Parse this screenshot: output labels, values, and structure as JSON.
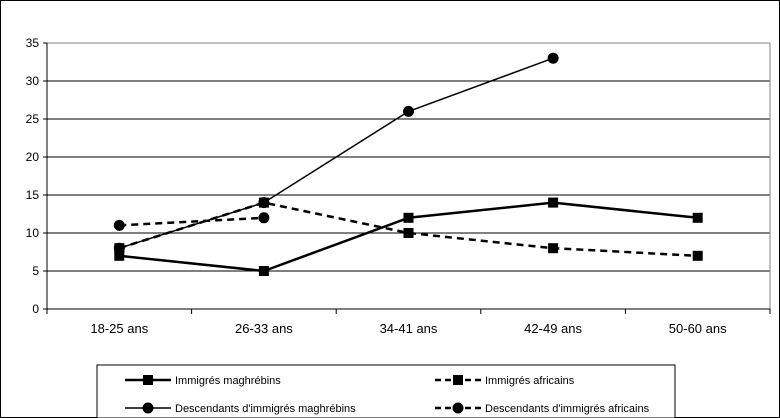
{
  "chart_data": {
    "type": "line",
    "categories": [
      "18-25 ans",
      "26-33 ans",
      "34-41 ans",
      "42-49 ans",
      "50-60 ans"
    ],
    "ylim": [
      0,
      35
    ],
    "yticks": [
      0,
      5,
      10,
      15,
      20,
      25,
      30,
      35
    ],
    "grid": true,
    "legend_position": "bottom",
    "series": [
      {
        "name": "Immigrés maghrébins",
        "values": [
          7,
          5,
          12,
          14,
          12
        ],
        "line": "solid",
        "marker": "square",
        "weight": "thick",
        "color": "#000000"
      },
      {
        "name": "Immigrés africains",
        "values": [
          8,
          14,
          10,
          8,
          7
        ],
        "line": "dashed",
        "marker": "square",
        "weight": "thick",
        "color": "#000000"
      },
      {
        "name": "Descendants d'immigrés maghrébins",
        "values": [
          8,
          14,
          26,
          33,
          null
        ],
        "line": "solid",
        "marker": "circle",
        "weight": "thin",
        "color": "#000000"
      },
      {
        "name": "Descendants d'immigrés africains",
        "values": [
          11,
          12,
          null,
          null,
          null
        ],
        "line": "dashed",
        "marker": "circle",
        "weight": "thick",
        "color": "#000000"
      }
    ]
  }
}
